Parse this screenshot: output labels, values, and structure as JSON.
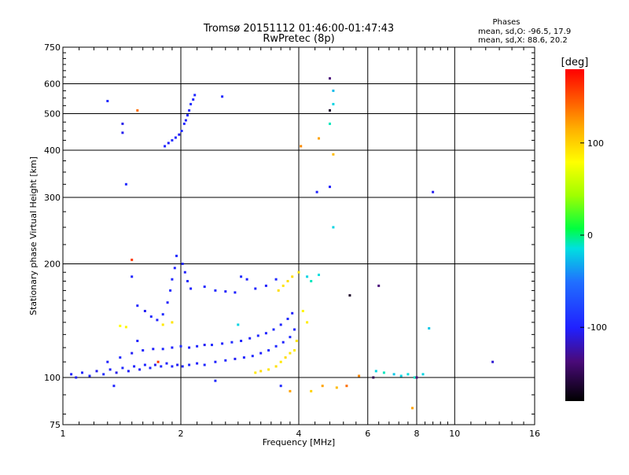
{
  "chart_data": {
    "type": "scatter",
    "title": "Tromsø 20151112 01:46:00-01:47:43",
    "subtitle": "RwPretec (8p)",
    "xlabel": "Frequency [MHz]",
    "ylabel": "Stationary phase Virtual Height [km]",
    "xscale": "log",
    "yscale": "log",
    "xlim": [
      1,
      16
    ],
    "ylim": [
      75,
      750
    ],
    "xticks": [
      1,
      2,
      4,
      6,
      8,
      10,
      16
    ],
    "yticks": [
      75,
      100,
      200,
      300,
      400,
      500,
      600,
      750
    ],
    "grid": true,
    "stats": {
      "heading": "Phases",
      "line_o": "mean, sd,O: -96.5, 17.9",
      "line_x": "mean, sd,X:  88.6, 20.2"
    },
    "colorbar": {
      "label": "[deg]",
      "range": [
        -180,
        180
      ],
      "ticks": [
        -100,
        0,
        100
      ],
      "tick_labels": [
        "-100",
        "0",
        "100"
      ],
      "colormap": "rainbow (black-purple-blue-cyan-green-yellow-orange-red)"
    },
    "series": [
      {
        "name": "",
        "points": [
          [
            1.05,
            102,
            -105
          ],
          [
            1.08,
            100,
            -108
          ],
          [
            1.12,
            103,
            -102
          ],
          [
            1.17,
            101,
            -100
          ],
          [
            1.22,
            104,
            -110
          ],
          [
            1.27,
            102,
            -98
          ],
          [
            1.32,
            105,
            -104
          ],
          [
            1.37,
            103,
            -112
          ],
          [
            1.42,
            106,
            -100
          ],
          [
            1.47,
            104,
            -106
          ],
          [
            1.52,
            107,
            -102
          ],
          [
            1.57,
            105,
            -108
          ],
          [
            1.62,
            108,
            -101
          ],
          [
            1.67,
            106,
            -104
          ],
          [
            1.72,
            108,
            -110
          ],
          [
            1.78,
            107,
            -100
          ],
          [
            1.84,
            109,
            -106
          ],
          [
            1.9,
            107,
            -102
          ],
          [
            1.96,
            108,
            -108
          ],
          [
            2.02,
            107,
            -103
          ],
          [
            2.1,
            108,
            -100
          ],
          [
            2.2,
            109,
            -106
          ],
          [
            2.3,
            108,
            -101
          ],
          [
            2.45,
            110,
            -104
          ],
          [
            2.6,
            111,
            -100
          ],
          [
            2.75,
            112,
            -108
          ],
          [
            2.9,
            113,
            -102
          ],
          [
            3.05,
            114,
            -100
          ],
          [
            3.2,
            116,
            -105
          ],
          [
            3.35,
            118,
            -96
          ],
          [
            3.5,
            121,
            -100
          ],
          [
            3.65,
            124,
            -104
          ],
          [
            3.8,
            128,
            -98
          ],
          [
            3.9,
            134,
            -102
          ]
        ]
      },
      {
        "name": "",
        "points": [
          [
            1.3,
            110,
            -104
          ],
          [
            1.4,
            113,
            -100
          ],
          [
            1.5,
            116,
            -108
          ],
          [
            1.6,
            118,
            -102
          ],
          [
            1.7,
            119,
            -106
          ],
          [
            1.8,
            119,
            -100
          ],
          [
            1.9,
            120,
            -104
          ],
          [
            2.0,
            121,
            -98
          ],
          [
            2.1,
            120,
            -106
          ],
          [
            2.2,
            121,
            -102
          ],
          [
            2.3,
            122,
            -108
          ],
          [
            2.4,
            122,
            -100
          ],
          [
            2.55,
            123,
            -104
          ],
          [
            2.7,
            124,
            -98
          ],
          [
            2.85,
            125,
            -102
          ],
          [
            3.0,
            127,
            -106
          ],
          [
            3.15,
            129,
            -100
          ],
          [
            3.3,
            131,
            -104
          ],
          [
            3.45,
            134,
            -98
          ],
          [
            3.6,
            138,
            -102
          ],
          [
            3.75,
            143,
            -100
          ],
          [
            3.85,
            148,
            -106
          ]
        ]
      },
      {
        "name": "",
        "points": [
          [
            1.55,
            155,
            -102
          ],
          [
            1.62,
            150,
            -108
          ],
          [
            1.68,
            145,
            -100
          ],
          [
            1.74,
            142,
            -104
          ],
          [
            1.8,
            147,
            -98
          ],
          [
            1.85,
            158,
            -106
          ],
          [
            1.88,
            170,
            -100
          ],
          [
            1.9,
            182,
            -102
          ],
          [
            1.93,
            195,
            -104
          ],
          [
            1.95,
            210,
            -98
          ]
        ]
      },
      {
        "name": "",
        "points": [
          [
            1.82,
            410,
            -102
          ],
          [
            1.86,
            418,
            -106
          ],
          [
            1.9,
            425,
            -100
          ],
          [
            1.94,
            432,
            -104
          ],
          [
            1.98,
            440,
            -108
          ],
          [
            2.01,
            450,
            -100
          ],
          [
            2.04,
            470,
            -102
          ],
          [
            2.06,
            480,
            -106
          ],
          [
            2.08,
            495,
            -100
          ],
          [
            2.1,
            510,
            -104
          ],
          [
            2.12,
            530,
            -98
          ],
          [
            2.15,
            545,
            -102
          ],
          [
            2.17,
            560,
            -100
          ]
        ]
      },
      {
        "name": "",
        "points": [
          [
            2.02,
            200,
            -102
          ],
          [
            2.05,
            190,
            -106
          ],
          [
            2.08,
            180,
            -100
          ],
          [
            2.12,
            172,
            -104
          ],
          [
            2.3,
            174,
            -102
          ],
          [
            2.45,
            170,
            -100
          ],
          [
            2.6,
            169,
            -106
          ],
          [
            2.75,
            168,
            -104
          ],
          [
            2.85,
            185,
            -100
          ],
          [
            2.95,
            182,
            -104
          ],
          [
            3.1,
            172,
            -102
          ],
          [
            3.3,
            175,
            -106
          ],
          [
            3.5,
            182,
            -100
          ]
        ]
      },
      {
        "name": "",
        "points": [
          [
            1.4,
            137,
            80
          ],
          [
            1.45,
            136,
            84
          ],
          [
            1.8,
            138,
            90
          ],
          [
            1.9,
            140,
            92
          ],
          [
            2.8,
            138,
            -20
          ],
          [
            3.1,
            103,
            90
          ],
          [
            3.2,
            104,
            96
          ],
          [
            3.35,
            105,
            92
          ],
          [
            3.5,
            107,
            94
          ],
          [
            3.6,
            110,
            90
          ],
          [
            3.7,
            113,
            96
          ],
          [
            3.8,
            116,
            92
          ],
          [
            3.9,
            118,
            88
          ],
          [
            3.95,
            125,
            90
          ],
          [
            3.55,
            170,
            95
          ],
          [
            3.65,
            175,
            92
          ],
          [
            3.75,
            180,
            94
          ],
          [
            3.85,
            185,
            96
          ],
          [
            4.0,
            190,
            90
          ],
          [
            4.1,
            150,
            84
          ],
          [
            4.2,
            140,
            88
          ],
          [
            4.3,
            92,
            100
          ]
        ]
      },
      {
        "name": "",
        "points": [
          [
            4.2,
            185,
            -20
          ],
          [
            4.3,
            180,
            -10
          ],
          [
            4.5,
            187,
            -15
          ],
          [
            4.8,
            470,
            -10
          ],
          [
            4.9,
            530,
            -20
          ],
          [
            4.9,
            575,
            -30
          ],
          [
            4.9,
            250,
            -20
          ],
          [
            6.3,
            104,
            -20
          ],
          [
            6.6,
            103,
            -10
          ],
          [
            7.0,
            102,
            -25
          ],
          [
            7.3,
            101,
            -20
          ],
          [
            7.6,
            102,
            -15
          ],
          [
            7.9,
            100,
            -10
          ],
          [
            8.3,
            102,
            -20
          ],
          [
            8.6,
            135,
            -25
          ]
        ]
      },
      {
        "name": "",
        "points": [
          [
            1.42,
            445,
            -110
          ],
          [
            1.42,
            470,
            -112
          ],
          [
            1.45,
            325,
            -100
          ],
          [
            1.5,
            185,
            -102
          ],
          [
            1.55,
            125,
            -104
          ],
          [
            1.3,
            540,
            -100
          ],
          [
            1.35,
            95,
            -102
          ],
          [
            2.45,
            98,
            -100
          ],
          [
            2.55,
            555,
            -100
          ],
          [
            4.45,
            310,
            -104
          ],
          [
            4.8,
            320,
            -106
          ],
          [
            4.8,
            620,
            -150
          ],
          [
            4.8,
            510,
            -170
          ],
          [
            5.4,
            165,
            -170
          ],
          [
            6.2,
            100,
            -160
          ],
          [
            8.0,
            100,
            -150
          ],
          [
            8.8,
            310,
            -110
          ],
          [
            12.5,
            110,
            -120
          ],
          [
            3.6,
            95,
            -100
          ],
          [
            6.4,
            175,
            -150
          ]
        ]
      },
      {
        "name": "",
        "points": [
          [
            1.55,
            510,
            140
          ],
          [
            1.5,
            205,
            160
          ],
          [
            1.75,
            110,
            160
          ],
          [
            4.5,
            430,
            120
          ],
          [
            4.9,
            390,
            110
          ],
          [
            5.3,
            95,
            140
          ],
          [
            5.7,
            101,
            130
          ],
          [
            5.0,
            94,
            110
          ],
          [
            4.6,
            95,
            120
          ],
          [
            7.8,
            83,
            120
          ],
          [
            4.05,
            410,
            130
          ],
          [
            3.8,
            92,
            120
          ]
        ]
      }
    ]
  }
}
